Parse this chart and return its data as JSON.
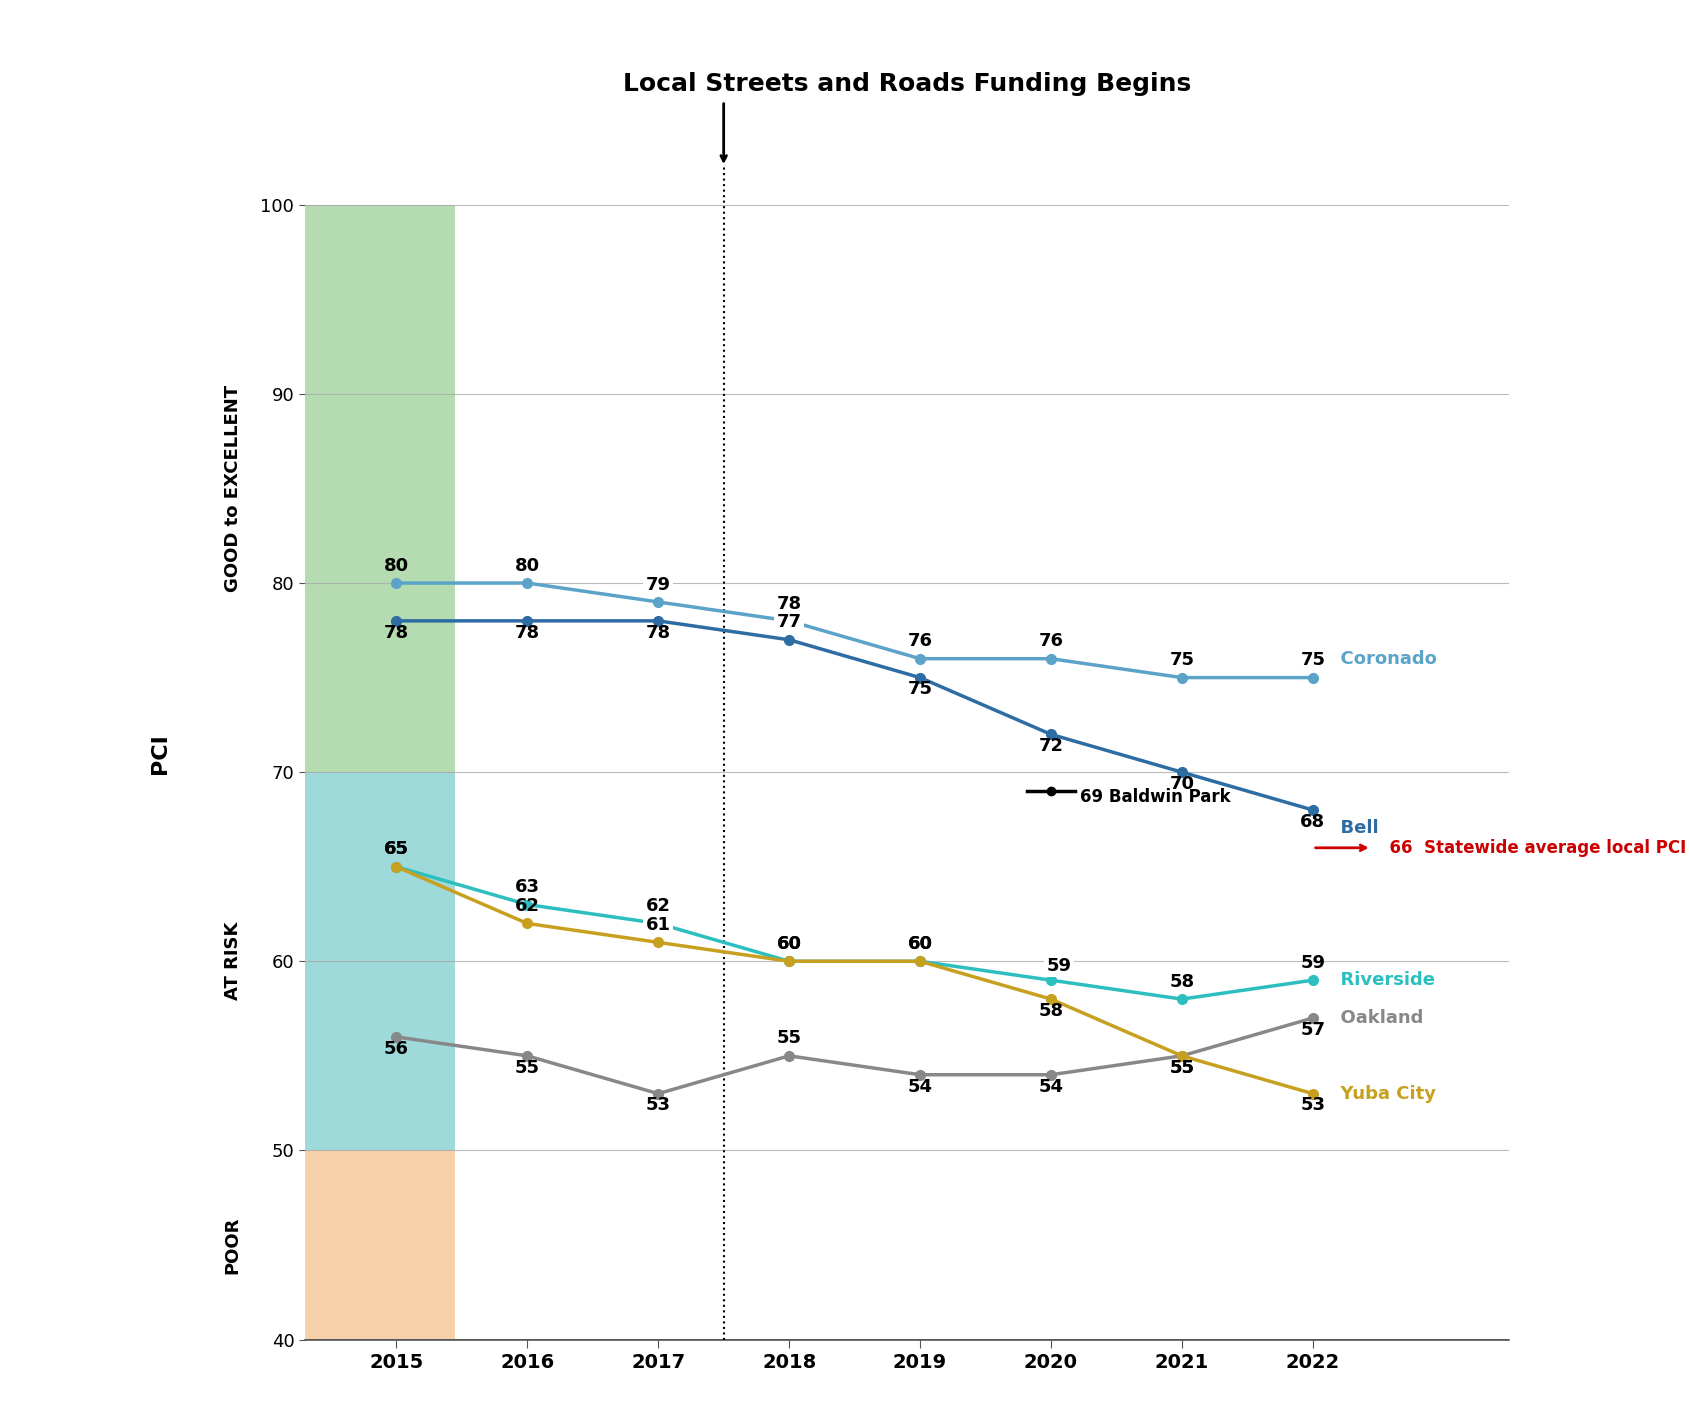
{
  "title": "Local Streets and Roads Funding Begins",
  "years": [
    2015,
    2016,
    2017,
    2018,
    2019,
    2020,
    2021,
    2022
  ],
  "funding_start_year": 2018,
  "series": {
    "Coronado": {
      "values": [
        80,
        80,
        79,
        78,
        76,
        76,
        75,
        75
      ],
      "color": "#5ba3c9",
      "linewidth": 2.5,
      "marker": "o",
      "markersize": 7,
      "zorder": 5
    },
    "Bell": {
      "values": [
        78,
        78,
        78,
        77,
        75,
        72,
        70,
        68
      ],
      "color": "#2e6da4",
      "linewidth": 2.5,
      "marker": "o",
      "markersize": 7,
      "zorder": 5
    },
    "Riverside": {
      "values": [
        65,
        63,
        62,
        60,
        60,
        59,
        58,
        59
      ],
      "color": "#2dbfbf",
      "linewidth": 2.5,
      "marker": "o",
      "markersize": 7,
      "zorder": 5
    },
    "Oakland": {
      "values": [
        56,
        55,
        53,
        55,
        54,
        54,
        55,
        57
      ],
      "color": "#888888",
      "linewidth": 2.5,
      "marker": "o",
      "markersize": 7,
      "zorder": 5
    },
    "Yuba City": {
      "values": [
        65,
        62,
        61,
        60,
        60,
        58,
        55,
        53
      ],
      "color": "#c8a020",
      "linewidth": 2.5,
      "marker": "o",
      "markersize": 7,
      "zorder": 5
    }
  },
  "statewide_avg": {
    "year": 2022,
    "value": 66,
    "color": "#cc0000",
    "label": "Statewide average local PCI"
  },
  "baldwin_park": {
    "year": 2020,
    "value": 69,
    "label": "Baldwin Park",
    "color": "#000000"
  },
  "ylim": [
    40,
    102
  ],
  "xlim_left": 2014.3,
  "xlim_right": 2023.5,
  "yticks": [
    40,
    50,
    60,
    70,
    80,
    90,
    100
  ],
  "zones": {
    "good_to_excellent": {
      "ymin": 70,
      "ymax": 100,
      "color": "#a8d5a2",
      "alpha": 0.85,
      "label": "GOOD to EXCELLENT"
    },
    "at_risk": {
      "ymin": 50,
      "ymax": 70,
      "color": "#7ecece",
      "alpha": 0.75,
      "label": "AT RISK"
    },
    "poor": {
      "ymin": 40,
      "ymax": 50,
      "color": "#f5c89a",
      "alpha": 0.85,
      "label": "POOR"
    }
  },
  "background_color": "#ffffff",
  "plot_bg_color": "#ffffff",
  "grid_color": "#aaaaaa",
  "zone_strip_x0": 2014.3,
  "zone_strip_x1": 2015.45,
  "label_fontsize": 13,
  "axis_label_fontsize": 14,
  "title_fontsize": 18
}
